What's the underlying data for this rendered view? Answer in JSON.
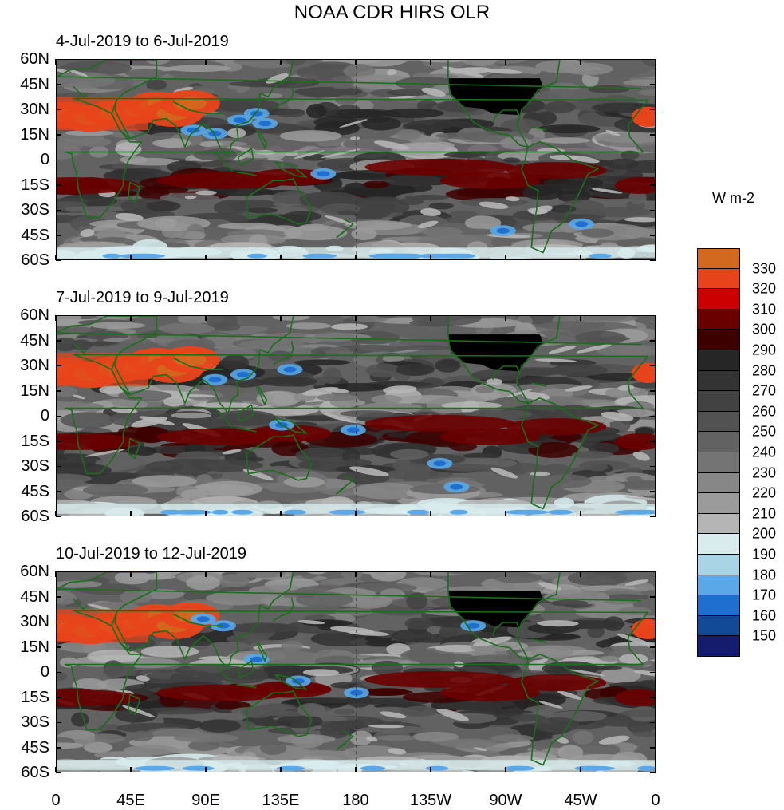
{
  "title": "NOAA CDR HIRS OLR",
  "panels": [
    {
      "label": "4-Jul-2019 to 6-Jul-2019"
    },
    {
      "label": "7-Jul-2019 to 9-Jul-2019"
    },
    {
      "label": "10-Jul-2019 to 12-Jul-2019"
    }
  ],
  "lat_labels": [
    "60N",
    "45N",
    "30N",
    "15N",
    "0",
    "15S",
    "30S",
    "45S",
    "60S"
  ],
  "lon_labels": [
    "0",
    "45E",
    "90E",
    "135E",
    "180",
    "135W",
    "90W",
    "45W",
    "0"
  ],
  "colorbar": {
    "unit": "W m-2",
    "labels": [
      "330",
      "320",
      "310",
      "300",
      "290",
      "280",
      "270",
      "260",
      "250",
      "240",
      "230",
      "220",
      "210",
      "200",
      "190",
      "180",
      "170",
      "160",
      "150"
    ],
    "colors": [
      "#d2691e",
      "#e8441b",
      "#cc0000",
      "#6b0000",
      "#3d0000",
      "#262626",
      "#333333",
      "#424242",
      "#525252",
      "#626262",
      "#747474",
      "#878787",
      "#9b9b9b",
      "#b5b5b5",
      "#d8ecee",
      "#a9d4e6",
      "#5aa8e8",
      "#1e6fcf",
      "#124a98",
      "#151c6e"
    ]
  },
  "map": {
    "coastline_color": "#1b6e1b",
    "background_color": "#5e5e5e",
    "land_us_color": "#000000"
  }
}
